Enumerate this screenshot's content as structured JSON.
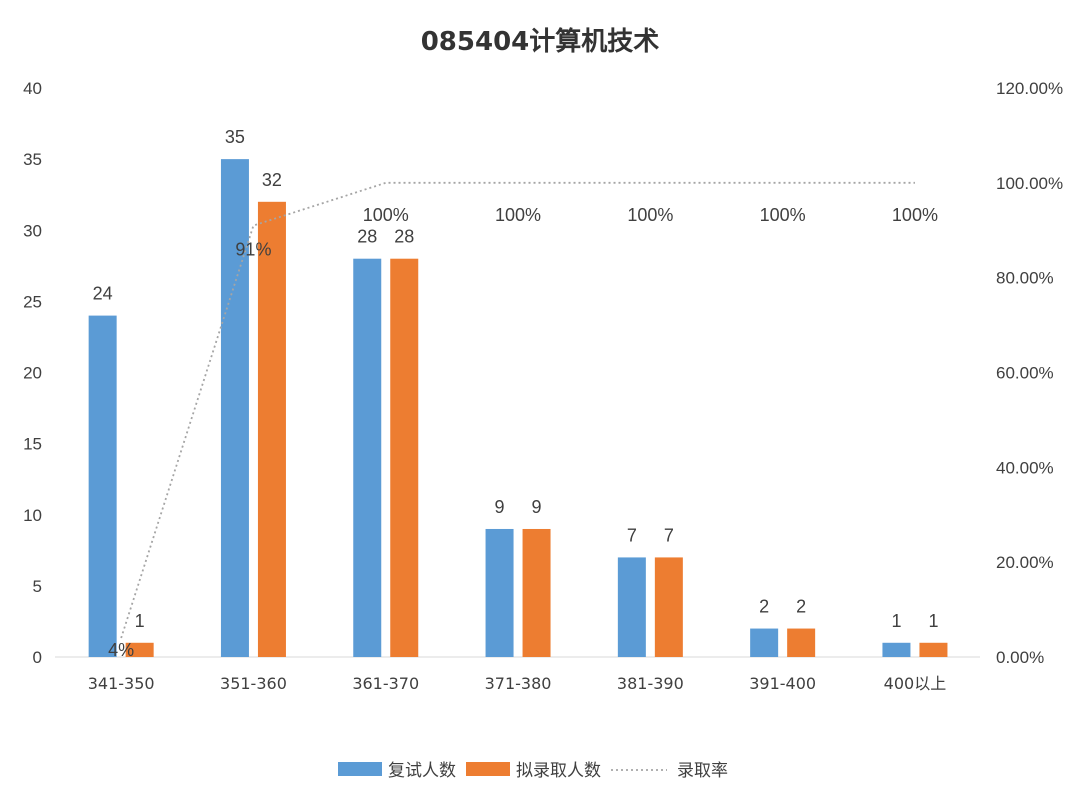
{
  "chart_data": {
    "type": "bar",
    "title": "085404计算机技术",
    "categories": [
      "341-350",
      "351-360",
      "361-370",
      "371-380",
      "381-390",
      "391-400",
      "400以上"
    ],
    "series": [
      {
        "name": "复试人数",
        "type": "bar",
        "axis": "left",
        "color": "#5B9BD5",
        "values": [
          24,
          35,
          28,
          9,
          7,
          2,
          1
        ]
      },
      {
        "name": "拟录取人数",
        "type": "bar",
        "axis": "left",
        "color": "#ED7D31",
        "values": [
          1,
          32,
          28,
          9,
          7,
          2,
          1
        ]
      },
      {
        "name": "录取率",
        "type": "line",
        "style": "dotted",
        "axis": "right",
        "color": "#A5A5A5",
        "values": [
          0.04,
          0.91,
          1.0,
          1.0,
          1.0,
          1.0,
          1.0
        ],
        "labels": [
          "4%",
          "91%",
          "100%",
          "100%",
          "100%",
          "100%",
          "100%"
        ]
      }
    ],
    "y_left": {
      "ylim": [
        0,
        40
      ],
      "ticks": [
        0,
        5,
        10,
        15,
        20,
        25,
        30,
        35,
        40
      ],
      "tick_labels": [
        "0",
        "5",
        "10",
        "15",
        "20",
        "25",
        "30",
        "35",
        "40"
      ]
    },
    "y_right": {
      "ylim": [
        0,
        1.2
      ],
      "ticks": [
        0,
        0.2,
        0.4,
        0.6,
        0.8,
        1.0,
        1.2
      ],
      "tick_labels": [
        "0.00%",
        "20.00%",
        "40.00%",
        "60.00%",
        "80.00%",
        "100.00%",
        "120.00%"
      ]
    },
    "grid": false,
    "legend_position": "bottom"
  }
}
